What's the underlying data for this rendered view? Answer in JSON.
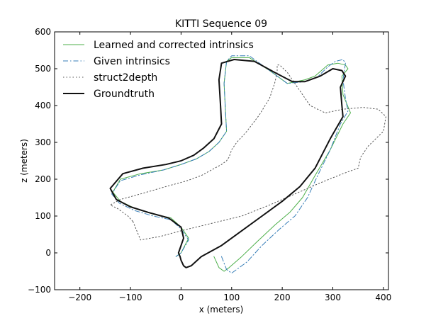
{
  "chart_data": {
    "type": "line",
    "title": "KITTI Sequence 09",
    "xlabel": "x (meters)",
    "ylabel": "z (meters)",
    "xlim": [
      -250,
      410
    ],
    "ylim": [
      -100,
      600
    ],
    "xticks": [
      -200,
      -100,
      0,
      100,
      200,
      300,
      400
    ],
    "yticks": [
      -100,
      0,
      100,
      200,
      300,
      400,
      500,
      600
    ],
    "grid": false,
    "legend_position": "top-left",
    "series": [
      {
        "name": "Learned and corrected intrinsics",
        "color": "#4daf4a",
        "style": "solid",
        "x": [
          65,
          75,
          85,
          95,
          120,
          150,
          185,
          215,
          240,
          265,
          295,
          320,
          335,
          320,
          318,
          330,
          325,
          310,
          290,
          265,
          245,
          210,
          175,
          135,
          100,
          90,
          85,
          88,
          90,
          75,
          55,
          30,
          0,
          -35,
          -80,
          -120,
          -135,
          -120,
          -90,
          -55,
          -20,
          0,
          15,
          0,
          -10
        ],
        "y": [
          -10,
          -40,
          -50,
          -40,
          -10,
          30,
          75,
          110,
          150,
          210,
          280,
          350,
          380,
          430,
          480,
          500,
          510,
          515,
          510,
          480,
          470,
          460,
          495,
          530,
          530,
          520,
          460,
          380,
          330,
          300,
          275,
          255,
          240,
          225,
          215,
          200,
          165,
          140,
          120,
          105,
          95,
          70,
          40,
          0,
          -10
        ]
      },
      {
        "name": "Given intrinsics",
        "color": "#377eb8",
        "style": "dashdot",
        "x": [
          80,
          90,
          100,
          130,
          160,
          195,
          225,
          250,
          270,
          295,
          315,
          330,
          325,
          320,
          325,
          320,
          305,
          290,
          270,
          245,
          210,
          175,
          135,
          100,
          90,
          85,
          88,
          90,
          75,
          55,
          30,
          0,
          -35,
          -80,
          -120,
          -137,
          -122,
          -92,
          -55,
          -20,
          0,
          15,
          0,
          -10
        ],
        "y": [
          -10,
          -45,
          -55,
          -25,
          20,
          65,
          100,
          150,
          210,
          280,
          350,
          385,
          420,
          470,
          515,
          525,
          520,
          505,
          478,
          465,
          460,
          495,
          535,
          535,
          520,
          460,
          380,
          330,
          300,
          275,
          255,
          240,
          225,
          212,
          196,
          160,
          135,
          115,
          100,
          90,
          65,
          35,
          0,
          -10
        ]
      },
      {
        "name": "struct2depth",
        "color": "#555555",
        "style": "dotted",
        "x": [
          -95,
          -80,
          -40,
          0,
          60,
          120,
          175,
          225,
          275,
          320,
          350,
          355,
          370,
          400,
          405,
          390,
          360,
          320,
          285,
          255,
          230,
          210,
          195,
          190,
          190,
          185,
          175,
          155,
          130,
          110,
          100,
          95,
          90,
          80,
          60,
          40,
          10,
          -30,
          -80,
          -120,
          -140,
          -125,
          -105,
          -95
        ],
        "y": [
          85,
          35,
          45,
          60,
          80,
          100,
          130,
          160,
          190,
          215,
          230,
          260,
          290,
          330,
          370,
          390,
          395,
          390,
          380,
          400,
          450,
          490,
          510,
          510,
          490,
          460,
          420,
          375,
          330,
          300,
          280,
          260,
          250,
          240,
          225,
          210,
          195,
          180,
          160,
          145,
          130,
          120,
          100,
          85
        ]
      },
      {
        "name": "Groundtruth",
        "color": "#111111",
        "style": "solid-thick",
        "x": [
          0,
          5,
          10,
          20,
          40,
          80,
          120,
          160,
          200,
          235,
          265,
          295,
          320,
          318,
          315,
          325,
          318,
          300,
          275,
          245,
          220,
          185,
          145,
          105,
          80,
          75,
          78,
          80,
          65,
          45,
          25,
          0,
          -30,
          -75,
          -115,
          -140,
          -128,
          -100,
          -65,
          -25,
          0,
          5,
          -5,
          -2,
          0
        ],
        "y": [
          -20,
          -35,
          -40,
          -35,
          -10,
          20,
          60,
          100,
          140,
          180,
          230,
          310,
          370,
          400,
          450,
          480,
          495,
          500,
          480,
          465,
          465,
          490,
          520,
          525,
          515,
          470,
          400,
          350,
          310,
          285,
          265,
          250,
          240,
          230,
          215,
          175,
          145,
          125,
          110,
          95,
          70,
          40,
          0,
          -10,
          -20
        ]
      }
    ]
  }
}
